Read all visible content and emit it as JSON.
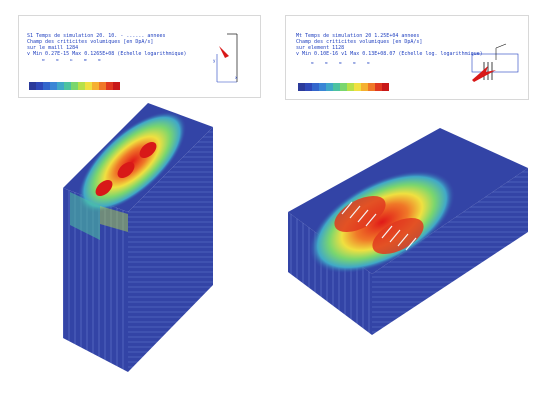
{
  "legend_left": {
    "line1": "S1 Temps de simulation 20. 10. - ...... annees",
    "line2": "Champ des criticites volumiques [en DpA/s]",
    "line3": "sur   le  maill  1284",
    "line4": "v Min  0.27E-15     Max 0.1265E+08    (Echelle logarithmique)",
    "tick_labels": [
      "D",
      "0",
      "A",
      "B",
      "0"
    ]
  },
  "legend_right": {
    "line1": "Mt Temps de simulation 20 1.25E+04 annees",
    "line2": "Champ des criticites volumiques [en DpA/s]",
    "line3": "sur   element 1128",
    "line4": "v Min  0.10E-16 v1    Max 0.13E+08.07      (Echelle log. logarithmique)",
    "tick_labels": [
      "0",
      "0",
      "0",
      "0",
      "0"
    ]
  },
  "colormap": [
    "#2b3a9a",
    "#2f48b8",
    "#3366cc",
    "#3a86d6",
    "#40a8c8",
    "#4cc3a0",
    "#7ad66e",
    "#b8e048",
    "#f0e040",
    "#f5b030",
    "#f07828",
    "#e03820",
    "#c81818"
  ],
  "colors": {
    "label": "#1f3fbf",
    "mesh": "#3444a8",
    "hot": "#d81818"
  }
}
